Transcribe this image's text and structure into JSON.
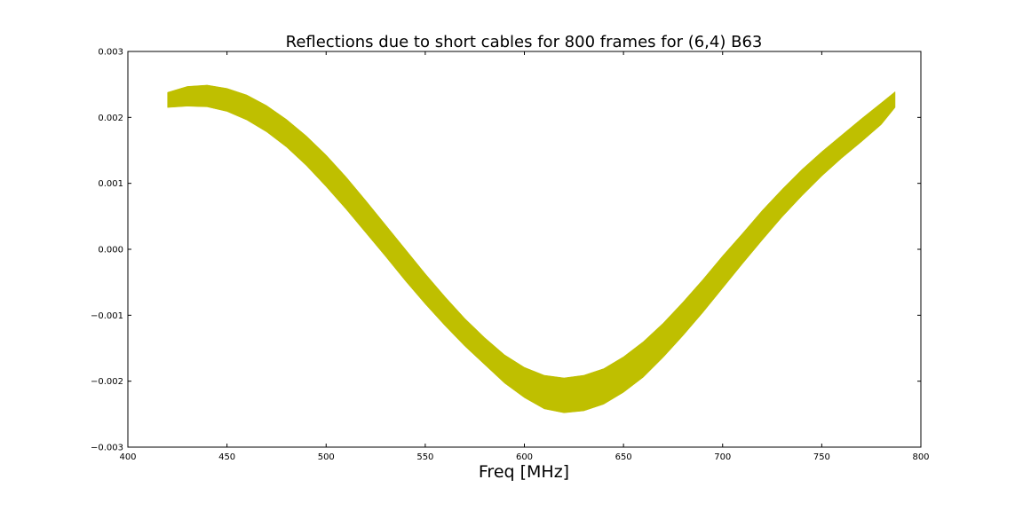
{
  "chart_data": {
    "type": "area",
    "title": "Reflections due to short cables for 800 frames for (6,4) B63",
    "xlabel": "Freq [MHz]",
    "ylabel": "",
    "xlim": [
      400,
      800
    ],
    "ylim": [
      -0.003,
      0.003
    ],
    "x_ticks": [
      "400",
      "450",
      "500",
      "550",
      "600",
      "650",
      "700",
      "750",
      "800"
    ],
    "y_ticks": [
      "−0.003",
      "−0.002",
      "−0.001",
      "0.000",
      "0.001",
      "0.002",
      "0.003"
    ],
    "grid": false,
    "band_color": "#bfbf00",
    "series": [
      {
        "x": [
          420,
          430,
          440,
          450,
          460,
          470,
          480,
          490,
          500,
          510,
          520,
          530,
          540,
          550,
          560,
          570,
          580,
          590,
          600,
          610,
          620,
          630,
          640,
          650,
          660,
          670,
          680,
          690,
          700,
          710,
          720,
          730,
          740,
          750,
          760,
          770,
          780,
          787
        ],
        "upper": [
          0.00238,
          0.00247,
          0.00249,
          0.00244,
          0.00234,
          0.00218,
          0.00197,
          0.00172,
          0.00143,
          0.0011,
          0.00074,
          0.00037,
          0.0,
          -0.00037,
          -0.00072,
          -0.00105,
          -0.00134,
          -0.0016,
          -0.00179,
          -0.00191,
          -0.00195,
          -0.00191,
          -0.00181,
          -0.00163,
          -0.0014,
          -0.00112,
          -0.0008,
          -0.00046,
          -0.0001,
          0.00024,
          0.00059,
          0.00091,
          0.00121,
          0.00148,
          0.00173,
          0.00198,
          0.00222,
          0.00239
        ],
        "lower": [
          0.00215,
          0.00217,
          0.00216,
          0.00209,
          0.00196,
          0.00178,
          0.00155,
          0.00127,
          0.00095,
          0.00061,
          0.00025,
          -0.00011,
          -0.00048,
          -0.00083,
          -0.00116,
          -0.00147,
          -0.00175,
          -0.00203,
          -0.00225,
          -0.00242,
          -0.00248,
          -0.00245,
          -0.00235,
          -0.00217,
          -0.00194,
          -0.00164,
          -0.00131,
          -0.00096,
          -0.00059,
          -0.00022,
          0.00014,
          0.00049,
          0.00081,
          0.00111,
          0.00138,
          0.00163,
          0.00189,
          0.00215
        ]
      }
    ]
  }
}
